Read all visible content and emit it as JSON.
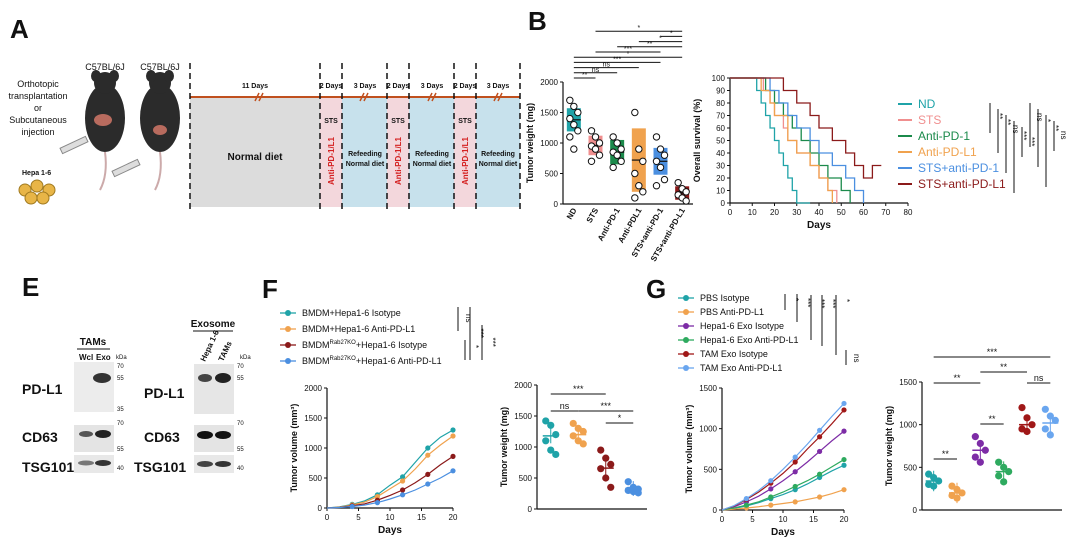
{
  "panels": {
    "A": "A",
    "B": "B",
    "E": "E",
    "F": "F",
    "G": "G"
  },
  "panelA": {
    "mouse1": "C57BL/6J",
    "mouse2": "C57BL/6J",
    "left_text": [
      "Orthotopic",
      "transplantation",
      "or",
      "Subcutaneous",
      "injection"
    ],
    "cells_label": "Hepa 1-6",
    "periods": [
      "11 Days",
      "2 Days",
      "3 Days",
      "2 Days",
      "3 Days",
      "2 Days",
      "3 Days"
    ],
    "diet_normal": "Normal diet",
    "sts": "STS",
    "anti": "Anti-PD-1/L1",
    "refeed1": "Refeeding",
    "refeed2": "Normal diet"
  },
  "panelB_bar": {
    "chart_data": {
      "type": "bar",
      "title": "",
      "ylabel": "Tumor weight (mg)",
      "ylim": [
        0,
        2000
      ],
      "yticks": [
        0,
        500,
        1000,
        1500,
        2000
      ],
      "categories": [
        "ND",
        "STS",
        "Anti-PD-1",
        "Anti-PDL1",
        "STS+anti-PD-1",
        "STS+anti-PD-L1"
      ],
      "values": [
        1380,
        960,
        850,
        720,
        700,
        180
      ],
      "errors": [
        190,
        160,
        200,
        520,
        220,
        110
      ],
      "colors": [
        "#1fa3a8",
        "#f08f8f",
        "#1b8a4b",
        "#f0a24e",
        "#4b8fe0",
        "#8b1a1a"
      ],
      "points": [
        [
          1700,
          1600,
          1500,
          1400,
          1300,
          1200,
          1100,
          900
        ],
        [
          1200,
          1100,
          1000,
          950,
          900,
          800,
          700
        ],
        [
          1100,
          1000,
          900,
          850,
          800,
          700,
          600
        ],
        [
          1500,
          900,
          700,
          500,
          300,
          200,
          100
        ],
        [
          1100,
          900,
          800,
          700,
          600,
          400,
          300
        ],
        [
          350,
          250,
          200,
          150,
          100,
          50
        ]
      ],
      "sig": [
        [
          "**"
        ],
        [
          "ns"
        ],
        [
          "ns"
        ],
        [
          "***"
        ],
        [
          "*"
        ],
        [
          "***"
        ],
        [
          "**"
        ],
        [
          "*"
        ],
        [
          "*"
        ],
        [
          "*"
        ]
      ]
    }
  },
  "panelB_surv": {
    "chart_data": {
      "type": "line",
      "ylabel": "Overall survival (%)",
      "xlabel": "Days",
      "xlim": [
        0,
        80
      ],
      "ylim": [
        0,
        100
      ],
      "xticks": [
        0,
        10,
        20,
        30,
        40,
        50,
        60,
        70,
        80
      ],
      "yticks": [
        0,
        10,
        20,
        30,
        40,
        50,
        60,
        70,
        80,
        90,
        100
      ],
      "series": [
        {
          "name": "ND",
          "color": "#1fa3a8",
          "x": [
            0,
            12,
            14,
            16,
            18,
            20,
            22,
            24,
            26,
            28,
            30,
            36
          ],
          "y": [
            100,
            90,
            80,
            70,
            60,
            50,
            40,
            30,
            20,
            10,
            0,
            0
          ]
        },
        {
          "name": "STS",
          "color": "#f08f8f",
          "x": [
            0,
            15,
            18,
            20,
            24,
            26,
            30,
            36,
            40,
            44,
            48
          ],
          "y": [
            100,
            90,
            80,
            70,
            60,
            50,
            40,
            30,
            20,
            10,
            0
          ]
        },
        {
          "name": "Anti-PD-1",
          "color": "#1b8a4b",
          "x": [
            0,
            16,
            20,
            24,
            28,
            32,
            36,
            40,
            44,
            50,
            54
          ],
          "y": [
            100,
            90,
            80,
            70,
            60,
            50,
            40,
            30,
            20,
            10,
            0
          ]
        },
        {
          "name": "Anti-PD-L1",
          "color": "#f0a24e",
          "x": [
            0,
            14,
            18,
            20,
            26,
            30,
            36,
            40,
            44,
            46
          ],
          "y": [
            100,
            90,
            80,
            70,
            50,
            40,
            30,
            20,
            10,
            0
          ]
        },
        {
          "name": "STS+anti-PD-1",
          "color": "#4b8fe0",
          "x": [
            0,
            18,
            22,
            26,
            30,
            36,
            40,
            46,
            52,
            56,
            60
          ],
          "y": [
            100,
            90,
            80,
            70,
            60,
            50,
            40,
            30,
            20,
            10,
            0
          ]
        },
        {
          "name": "STS+anti-PD-L1",
          "color": "#8b1a1a",
          "x": [
            0,
            24,
            30,
            36,
            40,
            46,
            52,
            56,
            60,
            64,
            68
          ],
          "y": [
            100,
            90,
            80,
            70,
            60,
            50,
            40,
            30,
            20,
            30,
            30
          ]
        }
      ],
      "sig": [
        "**",
        "**",
        "ns",
        "***",
        "***",
        "ns",
        "*",
        "**",
        "ns"
      ]
    }
  },
  "panelE": {
    "tams": "TAMs",
    "exosome": "Exosome",
    "lanes1": [
      "Wcl",
      "Exo"
    ],
    "lanes2": [
      "Hepa 1-6",
      "TAMs"
    ],
    "kda": "kDa",
    "rows": [
      "PD-L1",
      "CD63",
      "TSG101"
    ],
    "markers1": [
      "70",
      "55",
      "35",
      "70",
      "55",
      "40"
    ],
    "markers2": [
      "70",
      "55",
      "70",
      "55",
      "40"
    ]
  },
  "panelF_line": {
    "chart_data": {
      "type": "line",
      "xlabel": "Days",
      "ylabel": "Tumor volume (mm³)",
      "xlim": [
        0,
        20
      ],
      "ylim": [
        0,
        2000
      ],
      "xticks": [
        0,
        5,
        10,
        15,
        20
      ],
      "yticks": [
        0,
        500,
        1000,
        1500,
        2000
      ],
      "legend": [
        "BMDM+Hepa1-6 Isotype",
        "BMDM+Hepa1-6 Anti-PD-L1",
        "BMDM",
        "+Hepa1-6 Isotype",
        "BMDM",
        "+Hepa1-6 Anti-PD-L1"
      ],
      "sup": "Rab27KO",
      "series": [
        {
          "name": "BMDM+Hepa1-6 Isotype",
          "color": "#1fa3a8",
          "x": [
            0,
            2,
            4,
            6,
            8,
            10,
            12,
            14,
            16,
            18,
            20
          ],
          "y": [
            0,
            20,
            60,
            120,
            220,
            380,
            520,
            760,
            1000,
            1180,
            1300
          ]
        },
        {
          "name": "BMDM+Hepa1-6 Anti-PD-L1",
          "color": "#f0a24e",
          "x": [
            0,
            2,
            4,
            6,
            8,
            10,
            12,
            14,
            16,
            18,
            20
          ],
          "y": [
            0,
            15,
            50,
            100,
            190,
            320,
            450,
            650,
            880,
            1050,
            1200
          ]
        },
        {
          "name": "BMDM Rab27KO+Hepa1-6 Isotype",
          "color": "#8b1a1a",
          "x": [
            0,
            2,
            4,
            6,
            8,
            10,
            12,
            14,
            16,
            18,
            20
          ],
          "y": [
            0,
            10,
            35,
            70,
            130,
            210,
            300,
            420,
            560,
            720,
            860
          ]
        },
        {
          "name": "BMDM Rab27KO+Hepa1-6 Anti-PD-L1",
          "color": "#4b8fe0",
          "x": [
            0,
            2,
            4,
            6,
            8,
            10,
            12,
            14,
            16,
            18,
            20
          ],
          "y": [
            0,
            8,
            25,
            50,
            90,
            150,
            220,
            300,
            400,
            500,
            620
          ]
        }
      ],
      "sig": [
        "ns",
        "***",
        "*",
        "***"
      ]
    }
  },
  "panelF_dot": {
    "chart_data": {
      "type": "scatter",
      "ylabel": "Tumor weight (mg)",
      "ylim": [
        0,
        2000
      ],
      "yticks": [
        0,
        500,
        1000,
        1500,
        2000
      ],
      "colors": [
        "#1fa3a8",
        "#f0a24e",
        "#8b1a1a",
        "#4b8fe0"
      ],
      "means": [
        1180,
        1200,
        660,
        330
      ],
      "points": [
        [
          1420,
          1350,
          1200,
          1100,
          950,
          880
        ],
        [
          1380,
          1300,
          1250,
          1180,
          1100,
          1050
        ],
        [
          950,
          820,
          720,
          650,
          500,
          350
        ],
        [
          440,
          350,
          320,
          300,
          280,
          260
        ]
      ],
      "sig": [
        "***",
        "ns",
        "***",
        "*"
      ]
    }
  },
  "panelG_line": {
    "chart_data": {
      "type": "line",
      "xlabel": "Days",
      "ylabel": "Tumor volume (mm³)",
      "xlim": [
        0,
        20
      ],
      "ylim": [
        0,
        1500
      ],
      "xticks": [
        0,
        5,
        10,
        15,
        20
      ],
      "yticks": [
        0,
        500,
        1000,
        1500
      ],
      "legend": [
        "PBS Isotype",
        "PBS Anti-PD-L1",
        "Hepa1-6 Exo Isotype",
        "Hepa1-6 Exo Anti-PD-L1",
        "TAM Exo Isotype",
        "TAM Exo Anti-PD-L1"
      ],
      "series": [
        {
          "name": "PBS Isotype",
          "color": "#1fa3a8",
          "x": [
            0,
            2,
            4,
            6,
            8,
            10,
            12,
            14,
            16,
            18,
            20
          ],
          "y": [
            0,
            20,
            50,
            90,
            140,
            190,
            250,
            320,
            400,
            480,
            550
          ]
        },
        {
          "name": "PBS Anti-PD-L1",
          "color": "#f0a24e",
          "x": [
            0,
            2,
            4,
            6,
            8,
            10,
            12,
            14,
            16,
            18,
            20
          ],
          "y": [
            0,
            10,
            25,
            40,
            60,
            80,
            100,
            130,
            160,
            200,
            250
          ]
        },
        {
          "name": "Hepa1-6 Exo Isotype",
          "color": "#7d2ca6",
          "x": [
            0,
            2,
            4,
            6,
            8,
            10,
            12,
            14,
            16,
            18,
            20
          ],
          "y": [
            0,
            40,
            100,
            170,
            260,
            360,
            470,
            590,
            720,
            850,
            970
          ]
        },
        {
          "name": "Hepa1-6 Exo Anti-PD-L1",
          "color": "#2eaa5f",
          "x": [
            0,
            2,
            4,
            6,
            8,
            10,
            12,
            14,
            16,
            18,
            20
          ],
          "y": [
            0,
            25,
            60,
            100,
            160,
            220,
            290,
            360,
            440,
            530,
            620
          ]
        },
        {
          "name": "TAM Exo Isotype",
          "color": "#a01818",
          "x": [
            0,
            2,
            4,
            6,
            8,
            10,
            12,
            14,
            16,
            18,
            20
          ],
          "y": [
            0,
            50,
            130,
            220,
            330,
            450,
            590,
            750,
            900,
            1060,
            1230
          ]
        },
        {
          "name": "TAM Exo Anti-PD-L1",
          "color": "#6aa6ef",
          "x": [
            0,
            2,
            4,
            6,
            8,
            10,
            12,
            14,
            16,
            18,
            20
          ],
          "y": [
            0,
            55,
            140,
            240,
            360,
            500,
            650,
            810,
            980,
            1150,
            1310
          ]
        }
      ],
      "sig": [
        "*",
        "***",
        "***",
        "***",
        "*",
        "ns"
      ]
    }
  },
  "panelG_dot": {
    "chart_data": {
      "type": "scatter",
      "ylabel": "Tumor weight (mg)",
      "ylim": [
        0,
        1500
      ],
      "yticks": [
        0,
        500,
        1000,
        1500
      ],
      "colors": [
        "#1fa3a8",
        "#f0a24e",
        "#7d2ca6",
        "#2eaa5f",
        "#a01818",
        "#6aa6ef"
      ],
      "means": [
        340,
        200,
        700,
        450,
        1000,
        1020
      ],
      "points": [
        [
          420,
          380,
          340,
          300,
          280
        ],
        [
          280,
          240,
          200,
          170,
          140
        ],
        [
          860,
          780,
          700,
          620,
          560
        ],
        [
          560,
          500,
          450,
          400,
          330
        ],
        [
          1200,
          1080,
          1000,
          950,
          920
        ],
        [
          1180,
          1100,
          1050,
          950,
          880
        ]
      ],
      "sig": [
        "***",
        "**",
        "**",
        "**",
        "**",
        "ns"
      ]
    }
  }
}
